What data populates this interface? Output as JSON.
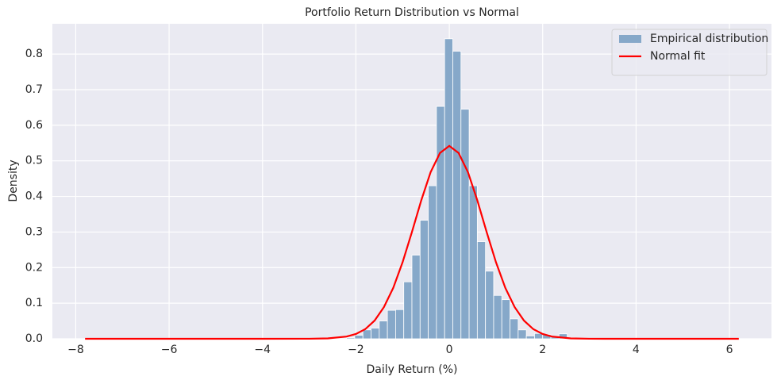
{
  "chart_data": {
    "type": "histogram",
    "title": "Portfolio Return Distribution vs Normal",
    "xlabel": "Daily Return (%)",
    "ylabel": "Density",
    "xlim": [
      -8.5,
      6.9
    ],
    "ylim": [
      0,
      0.885
    ],
    "xticks": [
      {
        "value": -8,
        "label": "−8"
      },
      {
        "value": -6,
        "label": "−6"
      },
      {
        "value": -4,
        "label": "−4"
      },
      {
        "value": -2,
        "label": "−2"
      },
      0,
      2,
      4,
      6
    ],
    "yticks": [
      {
        "value": 0,
        "label": "0.0"
      },
      0.1,
      0.2,
      0.3,
      0.4,
      0.5,
      0.6,
      0.7,
      0.8
    ],
    "grid": true,
    "legend": "upper right",
    "series": [
      {
        "name": "Empirical distribution",
        "type": "histogram",
        "color": "#86a8c9",
        "bins": [
          -7.8,
          -7.625,
          -7.45,
          -7.275,
          -7.1,
          -6.925,
          -6.75,
          -6.575,
          -6.4,
          -6.225,
          -6.05,
          -5.875,
          -5.7,
          -5.525,
          -5.35,
          -5.175,
          -5.0,
          -4.825,
          -4.65,
          -4.475,
          -4.3,
          -4.125,
          -3.95,
          -3.775,
          -3.6,
          -3.425,
          -3.25,
          -3.075,
          -2.9,
          -2.725,
          -2.55,
          -2.375,
          -2.2,
          -2.025,
          -1.85,
          -1.675,
          -1.5,
          -1.325,
          -1.15,
          -0.975,
          -0.8,
          -0.625,
          -0.45,
          -0.275,
          -0.1,
          0.075,
          0.25,
          0.425,
          0.6,
          0.775,
          0.95,
          1.125,
          1.3,
          1.475,
          1.65,
          1.825,
          2.0,
          2.175,
          2.35,
          2.525,
          2.7,
          2.875,
          3.05,
          3.225,
          3.4,
          3.575,
          3.75,
          3.925,
          4.1,
          4.275,
          4.45,
          4.625,
          4.8,
          4.975,
          5.15,
          5.325,
          5.5,
          5.675,
          5.85,
          6.025,
          6.2
        ],
        "values": [
          0,
          0,
          0,
          0,
          0,
          0,
          0,
          0,
          0,
          0,
          0,
          0,
          0,
          0,
          0,
          0,
          0,
          0,
          0,
          0,
          0,
          0,
          0,
          0,
          0,
          0,
          0,
          0,
          0,
          0,
          0,
          0,
          0.003,
          0.01,
          0.025,
          0.03,
          0.05,
          0.08,
          0.082,
          0.16,
          0.235,
          0.333,
          0.43,
          0.653,
          0.843,
          0.808,
          0.645,
          0.43,
          0.273,
          0.19,
          0.122,
          0.11,
          0.056,
          0.025,
          0.008,
          0.015,
          0.012,
          0.005,
          0.014,
          0.003,
          0,
          0,
          0,
          0,
          0,
          0,
          0,
          0,
          0,
          0,
          0,
          0,
          0,
          0,
          0,
          0,
          0,
          0,
          0,
          0
        ]
      },
      {
        "name": "Normal fit",
        "type": "line",
        "color": "#ff0000",
        "x": [
          -7.8,
          -4,
          -3,
          -2.6,
          -2.2,
          -2.0,
          -1.8,
          -1.6,
          -1.4,
          -1.2,
          -1.0,
          -0.8,
          -0.6,
          -0.4,
          -0.2,
          0,
          0.2,
          0.4,
          0.6,
          0.8,
          1.0,
          1.2,
          1.4,
          1.6,
          1.8,
          2.0,
          2.2,
          2.6,
          3,
          4,
          6.2
        ],
        "values": [
          0,
          0,
          0.0001,
          0.0011,
          0.0062,
          0.0135,
          0.027,
          0.051,
          0.089,
          0.143,
          0.215,
          0.3,
          0.389,
          0.468,
          0.522,
          0.542,
          0.522,
          0.468,
          0.389,
          0.3,
          0.215,
          0.143,
          0.089,
          0.051,
          0.027,
          0.0135,
          0.0062,
          0.0011,
          0.0001,
          0,
          0
        ]
      }
    ]
  }
}
